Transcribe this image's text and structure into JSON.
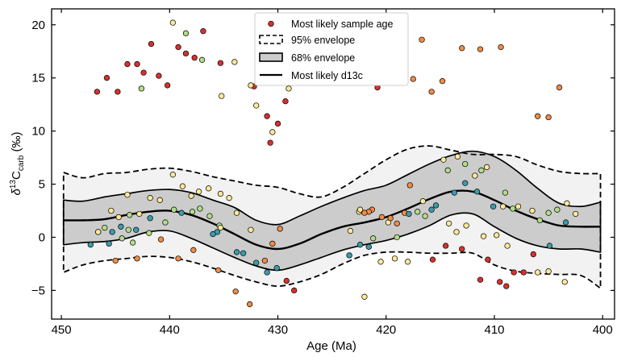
{
  "chart_data": {
    "type": "scatter",
    "xlabel": "Age (Ma)",
    "ylabel_prefix": "δ",
    "ylabel_sup": "13",
    "ylabel_main": "C",
    "ylabel_sub": "carb",
    "ylabel_suffix": " (‰)",
    "xlim": [
      450.9,
      398.9
    ],
    "ylim": [
      -7.7,
      21.5
    ],
    "xticks": [
      450,
      440,
      430,
      420,
      410,
      400
    ],
    "yticks": [
      -5,
      0,
      5,
      10,
      15,
      20
    ],
    "legend": {
      "position": "top-center",
      "entries": [
        {
          "label": "Most likely sample age",
          "kind": "dot"
        },
        {
          "label": "95% envelope",
          "kind": "dashed-box"
        },
        {
          "label": "68% envelope",
          "kind": "gray-box"
        },
        {
          "label": "Most likely d13c",
          "kind": "line"
        }
      ]
    },
    "colors": {
      "red": "#d7312f",
      "orange": "#f08c47",
      "yellow": "#fde89a",
      "lightgreen": "#b2dc8a",
      "teal": "#3b9cad",
      "band95": "#f2f2f2",
      "band68": "#cccccc"
    },
    "envelope_x": [
      449.8,
      448,
      446,
      444,
      442,
      440,
      438,
      436,
      434,
      432,
      430,
      428,
      426,
      424,
      422,
      420,
      418,
      416,
      414,
      412,
      410,
      408,
      406,
      404,
      402,
      400.2
    ],
    "likely_d13c": [
      1.6,
      1.6,
      1.7,
      2.1,
      2.4,
      2.5,
      2.1,
      1.3,
      0.3,
      -0.7,
      -1.1,
      -0.6,
      0.3,
      1.0,
      1.4,
      1.9,
      2.7,
      3.6,
      4.3,
      4.3,
      3.5,
      2.5,
      1.7,
      1.1,
      1.0,
      1.0
    ],
    "env68_upper": [
      3.5,
      3.4,
      3.8,
      4.1,
      4.4,
      4.5,
      4.2,
      3.5,
      2.8,
      1.6,
      1.2,
      2.0,
      2.9,
      3.7,
      4.4,
      4.9,
      5.9,
      6.9,
      7.7,
      8.1,
      7.6,
      6.3,
      4.6,
      3.2,
      2.9,
      3.3
    ],
    "env68_lower": [
      -0.7,
      -0.5,
      -0.4,
      -0.1,
      0.5,
      0.6,
      -0.1,
      -1.0,
      -1.9,
      -2.7,
      -3.1,
      -2.6,
      -1.9,
      -1.2,
      -0.7,
      -0.3,
      0.3,
      1.1,
      2.1,
      2.2,
      1.0,
      -0.1,
      -0.8,
      -1.1,
      -1.1,
      -1.4
    ],
    "env95_upper": [
      6.1,
      5.6,
      6.0,
      6.1,
      6.4,
      6.5,
      6.2,
      5.7,
      5.3,
      4.9,
      4.7,
      4.1,
      3.8,
      4.7,
      6.0,
      7.3,
      8.3,
      8.6,
      8.2,
      7.8,
      7.8,
      7.6,
      6.8,
      6.2,
      6.0,
      6.0
    ],
    "env95_lower": [
      -3.3,
      -2.6,
      -2.2,
      -2.0,
      -1.8,
      -1.9,
      -2.3,
      -2.9,
      -3.6,
      -4.2,
      -4.6,
      -4.2,
      -3.5,
      -2.5,
      -1.7,
      -1.4,
      -1.4,
      -1.5,
      -1.5,
      -1.5,
      -2.6,
      -3.2,
      -3.4,
      -3.5,
      -3.6,
      -4.8
    ],
    "points": [
      {
        "x": 446.7,
        "y": 13.7,
        "c": "red"
      },
      {
        "x": 445.8,
        "y": 15.0,
        "c": "red"
      },
      {
        "x": 444.8,
        "y": 13.7,
        "c": "red"
      },
      {
        "x": 443.9,
        "y": 16.3,
        "c": "red"
      },
      {
        "x": 443.0,
        "y": 16.3,
        "c": "red"
      },
      {
        "x": 442.4,
        "y": 15.5,
        "c": "red"
      },
      {
        "x": 441.7,
        "y": 18.2,
        "c": "red"
      },
      {
        "x": 441.0,
        "y": 15.2,
        "c": "red"
      },
      {
        "x": 440.2,
        "y": 14.3,
        "c": "red"
      },
      {
        "x": 439.2,
        "y": 17.9,
        "c": "red"
      },
      {
        "x": 438.5,
        "y": 17.3,
        "c": "red"
      },
      {
        "x": 437.7,
        "y": 16.9,
        "c": "red"
      },
      {
        "x": 436.9,
        "y": 19.4,
        "c": "red"
      },
      {
        "x": 435.3,
        "y": 16.4,
        "c": "red"
      },
      {
        "x": 432.2,
        "y": 14.2,
        "c": "red"
      },
      {
        "x": 431.0,
        "y": 11.4,
        "c": "red"
      },
      {
        "x": 430.0,
        "y": 10.7,
        "c": "red"
      },
      {
        "x": 429.3,
        "y": 12.8,
        "c": "red"
      },
      {
        "x": 430.7,
        "y": 8.9,
        "c": "red"
      },
      {
        "x": 420.8,
        "y": 14.1,
        "c": "red"
      },
      {
        "x": 429.2,
        "y": -4.1,
        "c": "red"
      },
      {
        "x": 428.5,
        "y": -5.0,
        "c": "red"
      },
      {
        "x": 415.7,
        "y": -2.1,
        "c": "red"
      },
      {
        "x": 414.5,
        "y": -0.8,
        "c": "red"
      },
      {
        "x": 413.0,
        "y": -1.1,
        "c": "red"
      },
      {
        "x": 411.3,
        "y": -4.0,
        "c": "red"
      },
      {
        "x": 410.6,
        "y": -2.1,
        "c": "red"
      },
      {
        "x": 409.5,
        "y": -4.2,
        "c": "red"
      },
      {
        "x": 408.9,
        "y": -4.6,
        "c": "red"
      },
      {
        "x": 408.2,
        "y": -3.3,
        "c": "red"
      },
      {
        "x": 407.3,
        "y": -3.3,
        "c": "red"
      },
      {
        "x": 406.4,
        "y": -1.6,
        "c": "red"
      },
      {
        "x": 439.7,
        "y": 20.2,
        "c": "yellow"
      },
      {
        "x": 438.5,
        "y": 19.2,
        "c": "lightgreen"
      },
      {
        "x": 437.0,
        "y": 16.7,
        "c": "lightgreen"
      },
      {
        "x": 434.0,
        "y": 16.5,
        "c": "yellow"
      },
      {
        "x": 435.2,
        "y": 13.3,
        "c": "yellow"
      },
      {
        "x": 432.0,
        "y": 12.4,
        "c": "yellow"
      },
      {
        "x": 432.5,
        "y": 14.3,
        "c": "yellow"
      },
      {
        "x": 430.5,
        "y": 9.9,
        "c": "yellow"
      },
      {
        "x": 429.0,
        "y": 14.0,
        "c": "yellow"
      },
      {
        "x": 442.6,
        "y": 14.0,
        "c": "lightgreen"
      },
      {
        "x": 418.8,
        "y": 16.8,
        "c": "yellow"
      },
      {
        "x": 417.5,
        "y": 14.9,
        "c": "orange"
      },
      {
        "x": 416.7,
        "y": 18.6,
        "c": "orange"
      },
      {
        "x": 415.8,
        "y": 13.7,
        "c": "orange"
      },
      {
        "x": 414.8,
        "y": 14.7,
        "c": "orange"
      },
      {
        "x": 413.0,
        "y": 17.8,
        "c": "orange"
      },
      {
        "x": 411.3,
        "y": 17.7,
        "c": "orange"
      },
      {
        "x": 409.4,
        "y": 17.9,
        "c": "orange"
      },
      {
        "x": 406.0,
        "y": 11.4,
        "c": "orange"
      },
      {
        "x": 405.0,
        "y": 11.3,
        "c": "orange"
      },
      {
        "x": 404.0,
        "y": 14.1,
        "c": "orange"
      },
      {
        "x": 445.0,
        "y": -2.2,
        "c": "orange"
      },
      {
        "x": 443.0,
        "y": -2.0,
        "c": "orange"
      },
      {
        "x": 439.2,
        "y": -2.0,
        "c": "orange"
      },
      {
        "x": 435.5,
        "y": -3.1,
        "c": "orange"
      },
      {
        "x": 433.9,
        "y": -5.1,
        "c": "orange"
      },
      {
        "x": 432.6,
        "y": -6.3,
        "c": "orange"
      },
      {
        "x": 431.2,
        "y": -2.2,
        "c": "orange"
      },
      {
        "x": 430.5,
        "y": -0.6,
        "c": "orange"
      },
      {
        "x": 429.8,
        "y": 0.8,
        "c": "orange"
      },
      {
        "x": 422.0,
        "y": -5.6,
        "c": "yellow"
      },
      {
        "x": 420.5,
        "y": -2.3,
        "c": "yellow"
      },
      {
        "x": 419.2,
        "y": -2.0,
        "c": "yellow"
      },
      {
        "x": 418.0,
        "y": -2.3,
        "c": "yellow"
      },
      {
        "x": 419.8,
        "y": 1.4,
        "c": "yellow"
      },
      {
        "x": 407.8,
        "y": 2.9,
        "c": "yellow"
      },
      {
        "x": 406.5,
        "y": 2.5,
        "c": "yellow"
      },
      {
        "x": 406.0,
        "y": -3.3,
        "c": "yellow"
      },
      {
        "x": 405.0,
        "y": -3.2,
        "c": "yellow"
      },
      {
        "x": 403.5,
        "y": -4.2,
        "c": "yellow"
      },
      {
        "x": 403.3,
        "y": 3.2,
        "c": "yellow"
      },
      {
        "x": 402.5,
        "y": 2.2,
        "c": "yellow"
      },
      {
        "x": 405.0,
        "y": 2.3,
        "c": "lightgreen"
      },
      {
        "x": 404.2,
        "y": 2.6,
        "c": "lightgreen"
      },
      {
        "x": 409.0,
        "y": 4.2,
        "c": "lightgreen"
      },
      {
        "x": 409.8,
        "y": 0.2,
        "c": "yellow"
      },
      {
        "x": 411.0,
        "y": 0.1,
        "c": "yellow"
      },
      {
        "x": 412.6,
        "y": 1.1,
        "c": "yellow"
      },
      {
        "x": 413.5,
        "y": 0.5,
        "c": "yellow"
      },
      {
        "x": 414.2,
        "y": 1.3,
        "c": "yellow"
      },
      {
        "x": 410.7,
        "y": 6.6,
        "c": "yellow"
      },
      {
        "x": 411.2,
        "y": 6.3,
        "c": "lightgreen"
      },
      {
        "x": 411.8,
        "y": 5.8,
        "c": "yellow"
      },
      {
        "x": 413.4,
        "y": 7.6,
        "c": "yellow"
      },
      {
        "x": 414.7,
        "y": 7.3,
        "c": "yellow"
      },
      {
        "x": 414.3,
        "y": 6.3,
        "c": "lightgreen"
      },
      {
        "x": 412.7,
        "y": 6.9,
        "c": "lightgreen"
      },
      {
        "x": 417.8,
        "y": 4.9,
        "c": "orange"
      },
      {
        "x": 416.6,
        "y": 3.4,
        "c": "yellow"
      },
      {
        "x": 416.4,
        "y": 2.0,
        "c": "lightgreen"
      },
      {
        "x": 417.1,
        "y": 2.4,
        "c": "lightgreen"
      },
      {
        "x": 415.4,
        "y": 3.0,
        "c": "teal"
      },
      {
        "x": 415.8,
        "y": 2.6,
        "c": "teal"
      },
      {
        "x": 413.7,
        "y": 4.2,
        "c": "teal"
      },
      {
        "x": 411.6,
        "y": 4.3,
        "c": "teal"
      },
      {
        "x": 412.7,
        "y": 5.1,
        "c": "teal"
      },
      {
        "x": 409.2,
        "y": 2.9,
        "c": "yellow"
      },
      {
        "x": 408.3,
        "y": 2.7,
        "c": "lightgreen"
      },
      {
        "x": 410.1,
        "y": 2.9,
        "c": "teal"
      },
      {
        "x": 408.8,
        "y": -0.8,
        "c": "yellow"
      },
      {
        "x": 404.9,
        "y": -0.8,
        "c": "teal"
      },
      {
        "x": 403.4,
        "y": 1.4,
        "c": "teal"
      },
      {
        "x": 405.8,
        "y": 1.6,
        "c": "lightgreen"
      },
      {
        "x": 418.3,
        "y": 2.3,
        "c": "orange"
      },
      {
        "x": 419.6,
        "y": 1.8,
        "c": "orange"
      },
      {
        "x": 420.4,
        "y": 1.9,
        "c": "orange"
      },
      {
        "x": 421.3,
        "y": 2.6,
        "c": "orange"
      },
      {
        "x": 421.6,
        "y": 2.4,
        "c": "orange"
      },
      {
        "x": 422.0,
        "y": 2.3,
        "c": "orange"
      },
      {
        "x": 422.5,
        "y": 2.4,
        "c": "yellow"
      },
      {
        "x": 422.4,
        "y": 2.6,
        "c": "yellow"
      },
      {
        "x": 419.0,
        "y": 1.3,
        "c": "orange"
      },
      {
        "x": 419.0,
        "y": 0.0,
        "c": "lightgreen"
      },
      {
        "x": 417.9,
        "y": 2.2,
        "c": "teal"
      },
      {
        "x": 423.3,
        "y": 0.6,
        "c": "yellow"
      },
      {
        "x": 421.2,
        "y": -0.1,
        "c": "lightgreen"
      },
      {
        "x": 421.6,
        "y": -0.9,
        "c": "teal"
      },
      {
        "x": 422.4,
        "y": -0.7,
        "c": "teal"
      },
      {
        "x": 423.4,
        "y": -1.7,
        "c": "teal"
      },
      {
        "x": 446.6,
        "y": 0.5,
        "c": "lightgreen"
      },
      {
        "x": 446.0,
        "y": 0.9,
        "c": "lightgreen"
      },
      {
        "x": 445.3,
        "y": 0.5,
        "c": "teal"
      },
      {
        "x": 444.5,
        "y": 1.0,
        "c": "teal"
      },
      {
        "x": 443.8,
        "y": 0.7,
        "c": "lightgreen"
      },
      {
        "x": 443.1,
        "y": 0.7,
        "c": "teal"
      },
      {
        "x": 441.9,
        "y": 0.4,
        "c": "lightgreen"
      },
      {
        "x": 444.7,
        "y": 1.9,
        "c": "yellow"
      },
      {
        "x": 443.7,
        "y": 2.1,
        "c": "lightgreen"
      },
      {
        "x": 442.8,
        "y": 2.2,
        "c": "yellow"
      },
      {
        "x": 441.8,
        "y": 1.8,
        "c": "teal"
      },
      {
        "x": 440.4,
        "y": 1.4,
        "c": "lightgreen"
      },
      {
        "x": 439.6,
        "y": 2.6,
        "c": "lightgreen"
      },
      {
        "x": 438.9,
        "y": 2.3,
        "c": "teal"
      },
      {
        "x": 437.9,
        "y": 2.4,
        "c": "lightgreen"
      },
      {
        "x": 437.2,
        "y": 2.7,
        "c": "lightgreen"
      },
      {
        "x": 436.3,
        "y": 2.0,
        "c": "lightgreen"
      },
      {
        "x": 435.4,
        "y": 1.1,
        "c": "lightgreen"
      },
      {
        "x": 435.3,
        "y": 0.9,
        "c": "yellow"
      },
      {
        "x": 435.6,
        "y": 0.5,
        "c": "teal"
      },
      {
        "x": 436.0,
        "y": 0.3,
        "c": "teal"
      },
      {
        "x": 434.5,
        "y": 3.7,
        "c": "yellow"
      },
      {
        "x": 435.3,
        "y": 4.1,
        "c": "yellow"
      },
      {
        "x": 436.4,
        "y": 4.6,
        "c": "yellow"
      },
      {
        "x": 437.3,
        "y": 4.3,
        "c": "yellow"
      },
      {
        "x": 438.0,
        "y": 3.9,
        "c": "yellow"
      },
      {
        "x": 438.8,
        "y": 4.8,
        "c": "yellow"
      },
      {
        "x": 439.7,
        "y": 5.9,
        "c": "yellow"
      },
      {
        "x": 441.8,
        "y": 3.7,
        "c": "yellow"
      },
      {
        "x": 440.9,
        "y": 3.5,
        "c": "yellow"
      },
      {
        "x": 443.9,
        "y": 4.0,
        "c": "yellow"
      },
      {
        "x": 445.4,
        "y": 2.5,
        "c": "yellow"
      },
      {
        "x": 446.6,
        "y": 0.5,
        "c": "yellow"
      },
      {
        "x": 445.6,
        "y": -0.6,
        "c": "teal"
      },
      {
        "x": 447.3,
        "y": -0.7,
        "c": "teal"
      },
      {
        "x": 444.4,
        "y": -0.1,
        "c": "lightgreen"
      },
      {
        "x": 443.4,
        "y": -0.5,
        "c": "lightgreen"
      },
      {
        "x": 440.8,
        "y": -0.2,
        "c": "orange"
      },
      {
        "x": 437.8,
        "y": -1.2,
        "c": "orange"
      },
      {
        "x": 433.8,
        "y": -1.4,
        "c": "teal"
      },
      {
        "x": 433.2,
        "y": -1.5,
        "c": "teal"
      },
      {
        "x": 432.0,
        "y": -2.4,
        "c": "teal"
      },
      {
        "x": 430.1,
        "y": -2.9,
        "c": "teal"
      },
      {
        "x": 431.0,
        "y": -3.3,
        "c": "teal"
      },
      {
        "x": 432.5,
        "y": 0.7,
        "c": "yellow"
      },
      {
        "x": 433.8,
        "y": 2.3,
        "c": "yellow"
      }
    ]
  }
}
